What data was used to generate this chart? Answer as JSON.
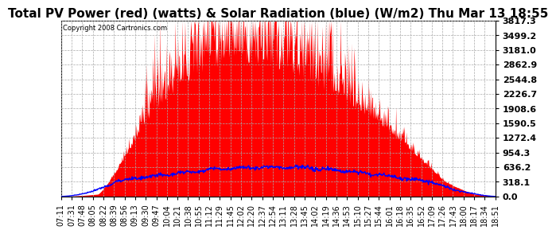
{
  "title": "Total PV Power (red) (watts) & Solar Radiation (blue) (W/m2) Thu Mar 13 18:55",
  "copyright": "Copyright 2008 Cartronics.com",
  "ymax": 3817.3,
  "ymin": 0.0,
  "yticks": [
    0.0,
    318.1,
    636.2,
    954.3,
    1272.4,
    1590.5,
    1908.6,
    2226.7,
    2544.8,
    2862.9,
    3181.0,
    3499.2,
    3817.3
  ],
  "xtick_labels": [
    "07:11",
    "07:31",
    "07:48",
    "08:05",
    "08:22",
    "08:39",
    "08:56",
    "09:13",
    "09:30",
    "09:47",
    "10:04",
    "10:21",
    "10:38",
    "10:55",
    "11:12",
    "11:29",
    "11:45",
    "12:02",
    "12:20",
    "12:37",
    "12:54",
    "13:11",
    "13:28",
    "13:45",
    "14:02",
    "14:19",
    "14:36",
    "14:53",
    "15:10",
    "15:27",
    "15:44",
    "16:01",
    "16:18",
    "16:35",
    "16:52",
    "17:09",
    "17:26",
    "17:43",
    "18:00",
    "18:17",
    "18:34",
    "18:51"
  ],
  "bg_color": "#ffffff",
  "grid_color": "#aaaaaa",
  "pv_color": "red",
  "solar_color": "blue",
  "title_fontsize": 11,
  "label_fontsize": 7,
  "ylabel_right_fontsize": 8,
  "n_points": 800,
  "total_minutes": 704,
  "pv_peak_minute": 330,
  "pv_peak_value": 3500,
  "solar_peak_value": 640,
  "solar_peak_minute": 340
}
